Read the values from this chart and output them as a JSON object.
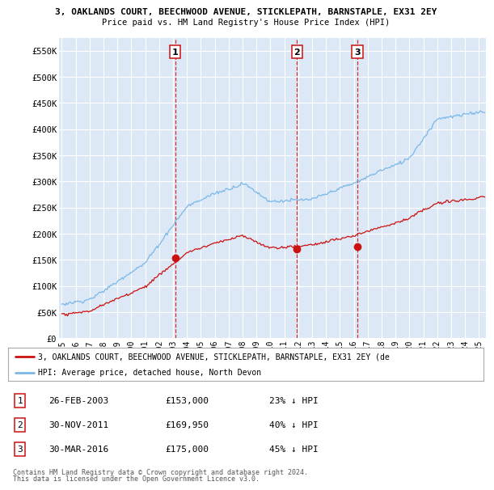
{
  "title1": "3, OAKLANDS COURT, BEECHWOOD AVENUE, STICKLEPATH, BARNSTAPLE, EX31 2EY",
  "title2": "Price paid vs. HM Land Registry's House Price Index (HPI)",
  "ylabel_ticks": [
    "£0",
    "£50K",
    "£100K",
    "£150K",
    "£200K",
    "£250K",
    "£300K",
    "£350K",
    "£400K",
    "£450K",
    "£500K",
    "£550K"
  ],
  "ytick_vals": [
    0,
    50000,
    100000,
    150000,
    200000,
    250000,
    300000,
    350000,
    400000,
    450000,
    500000,
    550000
  ],
  "ylim": [
    0,
    575000
  ],
  "xlim_start": 1994.8,
  "xlim_end": 2025.5,
  "hpi_color": "#7ab8e8",
  "price_color": "#cc1111",
  "vline_color": "#cc1111",
  "background_color": "#dce8f5",
  "legend_line1": "3, OAKLANDS COURT, BEECHWOOD AVENUE, STICKLEPATH, BARNSTAPLE, EX31 2EY (de",
  "legend_line2": "HPI: Average price, detached house, North Devon",
  "sales": [
    {
      "label": "1",
      "year": 2003.15,
      "price": 153000
    },
    {
      "label": "2",
      "year": 2011.92,
      "price": 169950
    },
    {
      "label": "3",
      "year": 2016.25,
      "price": 175000
    }
  ],
  "table_rows": [
    {
      "num": "1",
      "date": "26-FEB-2003",
      "price": "£153,000",
      "pct": "23% ↓ HPI"
    },
    {
      "num": "2",
      "date": "30-NOV-2011",
      "price": "£169,950",
      "pct": "40% ↓ HPI"
    },
    {
      "num": "3",
      "date": "30-MAR-2016",
      "price": "£175,000",
      "pct": "45% ↓ HPI"
    }
  ],
  "footnote1": "Contains HM Land Registry data © Crown copyright and database right 2024.",
  "footnote2": "This data is licensed under the Open Government Licence v3.0.",
  "xtick_years": [
    1995,
    1996,
    1997,
    1998,
    1999,
    2000,
    2001,
    2002,
    2003,
    2004,
    2005,
    2006,
    2007,
    2008,
    2009,
    2010,
    2011,
    2012,
    2013,
    2014,
    2015,
    2016,
    2017,
    2018,
    2019,
    2020,
    2021,
    2022,
    2023,
    2024,
    2025
  ]
}
